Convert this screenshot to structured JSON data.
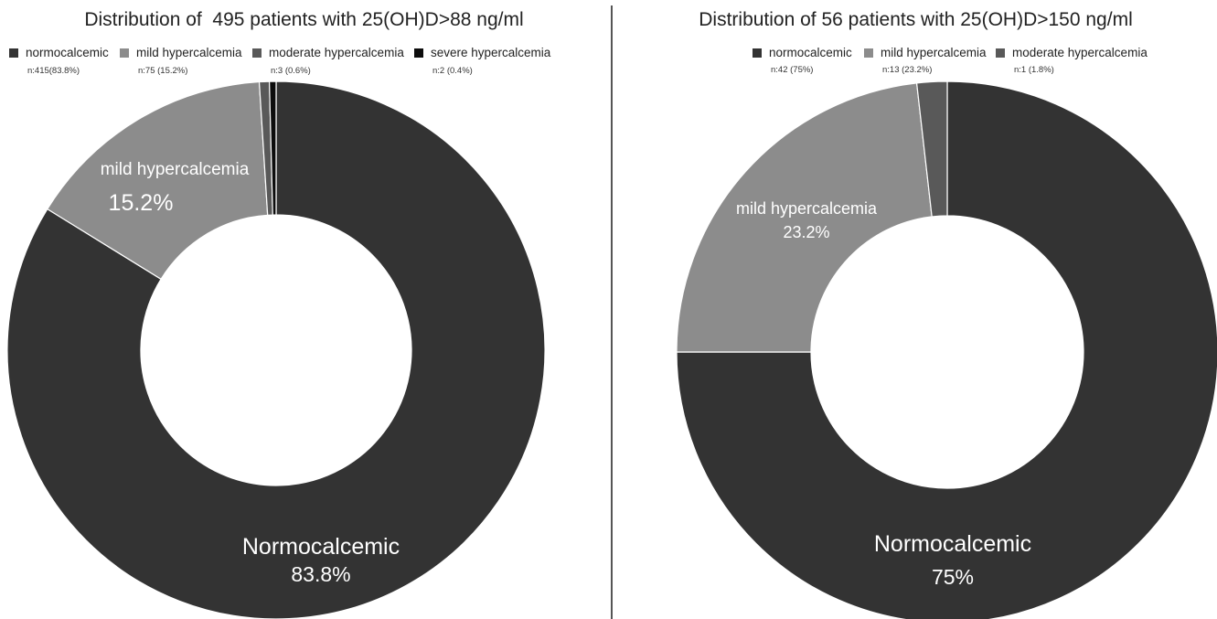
{
  "colors": {
    "normocalcemic": "#333333",
    "mild": "#8c8c8c",
    "moderate": "#595959",
    "severe": "#0d0d0d",
    "separator": "#ffffff"
  },
  "chart_data": [
    {
      "type": "pie",
      "title": "Distribution of  495 patients with 25(OH)D>88 ng/ml",
      "legend_position": "top",
      "categories": [
        "normocalcemic",
        "mild hypercalcemia",
        "moderate hypercalcemia",
        "severe hypercalcemia"
      ],
      "counts": [
        "n:415(83.8%)",
        "n:75 (15.2%)",
        "n:3 (0.6%)",
        "n:2 (0.4%)"
      ],
      "values": [
        83.8,
        15.2,
        0.6,
        0.4
      ],
      "n": [
        415,
        75,
        3,
        2
      ],
      "slice_labels": [
        {
          "name": "Normocalcemic",
          "pct": "83.8%"
        },
        {
          "name": "mild hypercalcemia",
          "pct": "15.2%"
        }
      ]
    },
    {
      "type": "pie",
      "title": "Distribution of 56 patients with 25(OH)D>150 ng/ml",
      "legend_position": "top",
      "categories": [
        "normocalcemic",
        "mild hypercalcemia",
        "moderate hypercalcemia"
      ],
      "counts": [
        "n:42 (75%)",
        "n:13 (23.2%)",
        "n:1 (1.8%)"
      ],
      "values": [
        75,
        23.2,
        1.8
      ],
      "n": [
        42,
        13,
        1
      ],
      "slice_labels": [
        {
          "name": "Normocalcemic",
          "pct": "75%"
        },
        {
          "name": "mild hypercalcemia",
          "pct": "23.2%"
        }
      ]
    }
  ]
}
